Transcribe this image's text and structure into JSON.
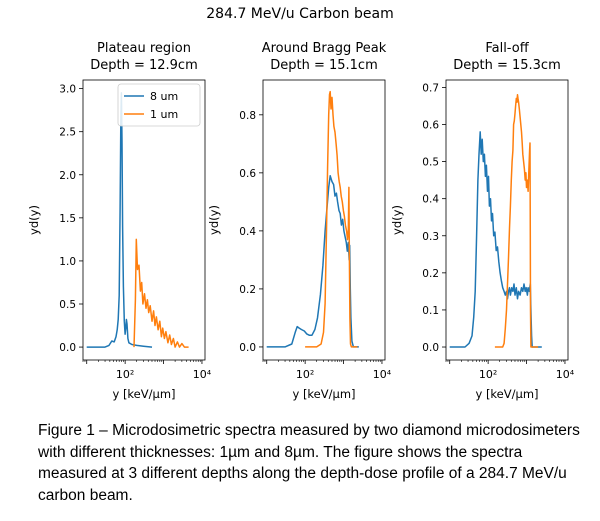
{
  "figure": {
    "suptitle": "284.7 MeV/u Carbon beam",
    "caption": "Figure 1 – Microdosimetric spectra measured by two diamond microdosimeters with different thicknesses: 1µm and 8µm. The figure shows the spectra measured at 3 different depths along the depth-dose profile of a 284.7 MeV/u carbon beam."
  },
  "colors": {
    "series_8um": "#1f77b4",
    "series_1um": "#ff7f0e"
  },
  "chart_data": [
    {
      "type": "line",
      "title": "Plateau region",
      "subtitle": "Depth = 12.9cm",
      "xlabel": "y [keV/µm]",
      "ylabel": "yd(y)",
      "xscale": "log",
      "xlim": [
        8,
        12000
      ],
      "ylim": [
        -0.15,
        3.1
      ],
      "xticks": [
        {
          "value": 100,
          "label": "10²"
        },
        {
          "value": 10000,
          "label": "10⁴"
        }
      ],
      "yticks": [
        0.0,
        0.5,
        1.0,
        1.5,
        2.0,
        2.5,
        3.0
      ],
      "yticklabels": [
        "0.0",
        "0.5",
        "1.0",
        "1.5",
        "2.0",
        "2.5",
        "3.0"
      ],
      "legend": {
        "position": "top-right",
        "entries": [
          "8 um",
          "1 um"
        ]
      },
      "series": [
        {
          "name": "8 um",
          "color": "#1f77b4",
          "points": [
            [
              10,
              0.0
            ],
            [
              30,
              0.0
            ],
            [
              38,
              0.02
            ],
            [
              45,
              0.07
            ],
            [
              52,
              0.06
            ],
            [
              58,
              0.12
            ],
            [
              62,
              0.2
            ],
            [
              66,
              0.32
            ],
            [
              70,
              0.6
            ],
            [
              74,
              1.6
            ],
            [
              77,
              2.6
            ],
            [
              80,
              2.95
            ],
            [
              83,
              2.4
            ],
            [
              86,
              1.4
            ],
            [
              90,
              0.7
            ],
            [
              95,
              0.3
            ],
            [
              100,
              0.15
            ],
            [
              104,
              0.22
            ],
            [
              108,
              0.32
            ],
            [
              112,
              0.27
            ],
            [
              118,
              0.1
            ],
            [
              125,
              0.05
            ],
            [
              150,
              0.03
            ],
            [
              200,
              0.02
            ],
            [
              300,
              0.01
            ],
            [
              500,
              0.0
            ]
          ]
        },
        {
          "name": "1 um",
          "color": "#ff7f0e",
          "points": [
            [
              170,
              0.0
            ],
            [
              185,
              0.55
            ],
            [
              195,
              1.25
            ],
            [
              210,
              0.9
            ],
            [
              230,
              0.95
            ],
            [
              250,
              0.65
            ],
            [
              270,
              0.75
            ],
            [
              290,
              0.5
            ],
            [
              320,
              0.62
            ],
            [
              350,
              0.45
            ],
            [
              380,
              0.55
            ],
            [
              410,
              0.4
            ],
            [
              450,
              0.48
            ],
            [
              500,
              0.3
            ],
            [
              550,
              0.42
            ],
            [
              600,
              0.25
            ],
            [
              650,
              0.35
            ],
            [
              720,
              0.2
            ],
            [
              800,
              0.3
            ],
            [
              880,
              0.12
            ],
            [
              950,
              0.22
            ],
            [
              1050,
              0.1
            ],
            [
              1150,
              0.18
            ],
            [
              1300,
              0.05
            ],
            [
              1450,
              0.14
            ],
            [
              1600,
              0.03
            ],
            [
              1800,
              0.1
            ],
            [
              2000,
              0.0
            ],
            [
              2300,
              0.06
            ],
            [
              2600,
              0.0
            ],
            [
              3000,
              0.04
            ],
            [
              3500,
              0.0
            ],
            [
              4500,
              0.0
            ]
          ]
        }
      ]
    },
    {
      "type": "line",
      "title": "Around Bragg Peak",
      "subtitle": "Depth = 15.1cm",
      "xlabel": "y [keV/µm]",
      "ylabel": "yd(y)",
      "xscale": "log",
      "xlim": [
        8,
        12000
      ],
      "ylim": [
        -0.045,
        0.92
      ],
      "xticks": [
        {
          "value": 100,
          "label": "10²"
        },
        {
          "value": 10000,
          "label": "10⁴"
        }
      ],
      "yticks": [
        0.0,
        0.2,
        0.4,
        0.6,
        0.8
      ],
      "yticklabels": [
        "0.0",
        "0.2",
        "0.4",
        "0.6",
        "0.8"
      ],
      "series": [
        {
          "name": "8 um",
          "color": "#1f77b4",
          "points": [
            [
              10,
              0.0
            ],
            [
              30,
              0.0
            ],
            [
              45,
              0.01
            ],
            [
              55,
              0.05
            ],
            [
              62,
              0.07
            ],
            [
              70,
              0.065
            ],
            [
              80,
              0.06
            ],
            [
              95,
              0.055
            ],
            [
              110,
              0.045
            ],
            [
              130,
              0.04
            ],
            [
              150,
              0.04
            ],
            [
              180,
              0.06
            ],
            [
              210,
              0.1
            ],
            [
              250,
              0.18
            ],
            [
              290,
              0.28
            ],
            [
              330,
              0.4
            ],
            [
              370,
              0.48
            ],
            [
              410,
              0.55
            ],
            [
              450,
              0.59
            ],
            [
              500,
              0.57
            ],
            [
              550,
              0.56
            ],
            [
              600,
              0.52
            ],
            [
              650,
              0.53
            ],
            [
              700,
              0.5
            ],
            [
              760,
              0.47
            ],
            [
              820,
              0.46
            ],
            [
              880,
              0.42
            ],
            [
              950,
              0.44
            ],
            [
              1020,
              0.4
            ],
            [
              1100,
              0.38
            ],
            [
              1180,
              0.36
            ],
            [
              1250,
              0.33
            ],
            [
              1330,
              0.36
            ],
            [
              1400,
              0.3
            ],
            [
              1450,
              0.35
            ],
            [
              1500,
              0.2
            ],
            [
              1550,
              0.1
            ],
            [
              1650,
              0.02
            ],
            [
              1800,
              0.0
            ],
            [
              2500,
              0.0
            ]
          ]
        },
        {
          "name": "1 um",
          "color": "#ff7f0e",
          "points": [
            [
              100,
              0.0
            ],
            [
              200,
              0.0
            ],
            [
              260,
              0.01
            ],
            [
              300,
              0.05
            ],
            [
              330,
              0.15
            ],
            [
              360,
              0.4
            ],
            [
              385,
              0.62
            ],
            [
              410,
              0.8
            ],
            [
              430,
              0.87
            ],
            [
              450,
              0.88
            ],
            [
              470,
              0.82
            ],
            [
              500,
              0.86
            ],
            [
              530,
              0.8
            ],
            [
              560,
              0.76
            ],
            [
              600,
              0.74
            ],
            [
              640,
              0.7
            ],
            [
              680,
              0.66
            ],
            [
              720,
              0.6
            ],
            [
              770,
              0.57
            ],
            [
              820,
              0.55
            ],
            [
              870,
              0.52
            ],
            [
              930,
              0.5
            ],
            [
              990,
              0.47
            ],
            [
              1050,
              0.45
            ],
            [
              1120,
              0.42
            ],
            [
              1200,
              0.4
            ],
            [
              1270,
              0.37
            ],
            [
              1330,
              0.4
            ],
            [
              1380,
              0.55
            ],
            [
              1420,
              0.3
            ],
            [
              1460,
              0.1
            ],
            [
              1520,
              0.01
            ],
            [
              1600,
              0.0
            ],
            [
              2300,
              0.0
            ]
          ]
        }
      ]
    },
    {
      "type": "line",
      "title": "Fall-off",
      "subtitle": "Depth = 15.3cm",
      "xlabel": "y [keV/µm]",
      "ylabel": "yd(y)",
      "xscale": "log",
      "xlim": [
        8,
        12000
      ],
      "ylim": [
        -0.035,
        0.72
      ],
      "xticks": [
        {
          "value": 100,
          "label": "10²"
        },
        {
          "value": 10000,
          "label": "10⁴"
        }
      ],
      "yticks": [
        0.0,
        0.1,
        0.2,
        0.3,
        0.4,
        0.5,
        0.6,
        0.7
      ],
      "yticklabels": [
        "0.0",
        "0.1",
        "0.2",
        "0.3",
        "0.4",
        "0.5",
        "0.6",
        "0.7"
      ],
      "series": [
        {
          "name": "8 um",
          "color": "#1f77b4",
          "points": [
            [
              10,
              0.0
            ],
            [
              25,
              0.0
            ],
            [
              32,
              0.01
            ],
            [
              38,
              0.03
            ],
            [
              42,
              0.08
            ],
            [
              46,
              0.15
            ],
            [
              50,
              0.3
            ],
            [
              54,
              0.45
            ],
            [
              58,
              0.52
            ],
            [
              62,
              0.58
            ],
            [
              66,
              0.52
            ],
            [
              70,
              0.56
            ],
            [
              75,
              0.5
            ],
            [
              80,
              0.52
            ],
            [
              85,
              0.46
            ],
            [
              90,
              0.49
            ],
            [
              96,
              0.42
            ],
            [
              102,
              0.46
            ],
            [
              108,
              0.38
            ],
            [
              115,
              0.4
            ],
            [
              122,
              0.34
            ],
            [
              130,
              0.36
            ],
            [
              140,
              0.3
            ],
            [
              150,
              0.31
            ],
            [
              162,
              0.26
            ],
            [
              175,
              0.27
            ],
            [
              190,
              0.23
            ],
            [
              205,
              0.2
            ],
            [
              220,
              0.18
            ],
            [
              240,
              0.16
            ],
            [
              260,
              0.15
            ],
            [
              280,
              0.14
            ],
            [
              300,
              0.15
            ],
            [
              320,
              0.13
            ],
            [
              340,
              0.15
            ],
            [
              360,
              0.16
            ],
            [
              380,
              0.14
            ],
            [
              410,
              0.16
            ],
            [
              440,
              0.15
            ],
            [
              470,
              0.17
            ],
            [
              500,
              0.14
            ],
            [
              540,
              0.16
            ],
            [
              580,
              0.13
            ],
            [
              620,
              0.15
            ],
            [
              680,
              0.14
            ],
            [
              740,
              0.16
            ],
            [
              800,
              0.15
            ],
            [
              860,
              0.17
            ],
            [
              920,
              0.15
            ],
            [
              980,
              0.16
            ],
            [
              1050,
              0.14
            ],
            [
              1100,
              0.16
            ],
            [
              1180,
              0.15
            ],
            [
              1250,
              0.17
            ],
            [
              1300,
              0.1
            ],
            [
              1350,
              0.03
            ],
            [
              1400,
              0.0
            ],
            [
              2500,
              0.0
            ]
          ]
        },
        {
          "name": "1 um",
          "color": "#ff7f0e",
          "points": [
            [
              150,
              0.0
            ],
            [
              240,
              0.0
            ],
            [
              260,
              0.01
            ],
            [
              280,
              0.05
            ],
            [
              300,
              0.1
            ],
            [
              320,
              0.17
            ],
            [
              340,
              0.24
            ],
            [
              360,
              0.32
            ],
            [
              380,
              0.38
            ],
            [
              400,
              0.45
            ],
            [
              420,
              0.5
            ],
            [
              440,
              0.53
            ],
            [
              460,
              0.6
            ],
            [
              480,
              0.61
            ],
            [
              500,
              0.63
            ],
            [
              520,
              0.65
            ],
            [
              540,
              0.67
            ],
            [
              560,
              0.66
            ],
            [
              580,
              0.68
            ],
            [
              600,
              0.67
            ],
            [
              620,
              0.66
            ],
            [
              650,
              0.64
            ],
            [
              680,
              0.62
            ],
            [
              710,
              0.6
            ],
            [
              740,
              0.58
            ],
            [
              770,
              0.55
            ],
            [
              800,
              0.52
            ],
            [
              840,
              0.5
            ],
            [
              880,
              0.48
            ],
            [
              920,
              0.45
            ],
            [
              960,
              0.47
            ],
            [
              1000,
              0.43
            ],
            [
              1050,
              0.45
            ],
            [
              1100,
              0.42
            ],
            [
              1150,
              0.48
            ],
            [
              1200,
              0.53
            ],
            [
              1230,
              0.55
            ],
            [
              1250,
              0.3
            ],
            [
              1270,
              0.1
            ],
            [
              1300,
              0.0
            ],
            [
              2000,
              0.0
            ]
          ]
        }
      ]
    }
  ]
}
